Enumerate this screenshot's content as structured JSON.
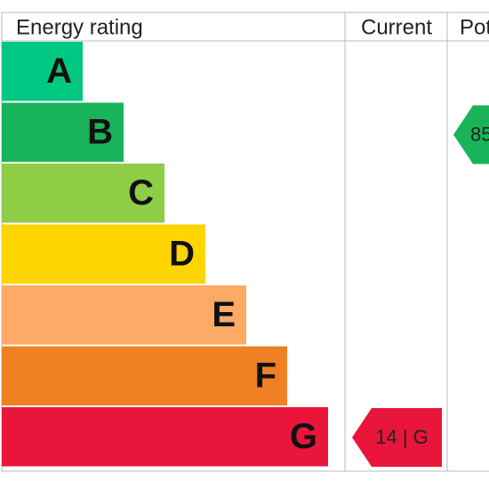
{
  "header": {
    "rating": "Energy rating",
    "current": "Current",
    "potential": "Pot"
  },
  "bands": [
    {
      "letter": "A",
      "color": "#00c781"
    },
    {
      "letter": "B",
      "color": "#19b459"
    },
    {
      "letter": "C",
      "color": "#8dce46"
    },
    {
      "letter": "D",
      "color": "#ffd500"
    },
    {
      "letter": "E",
      "color": "#fcaa65"
    },
    {
      "letter": "F",
      "color": "#ef8023"
    },
    {
      "letter": "G",
      "color": "#e9153b"
    }
  ],
  "current": {
    "label": "14 | G",
    "color": "#e9153b"
  },
  "potential": {
    "label": "85",
    "color": "#19b459"
  }
}
